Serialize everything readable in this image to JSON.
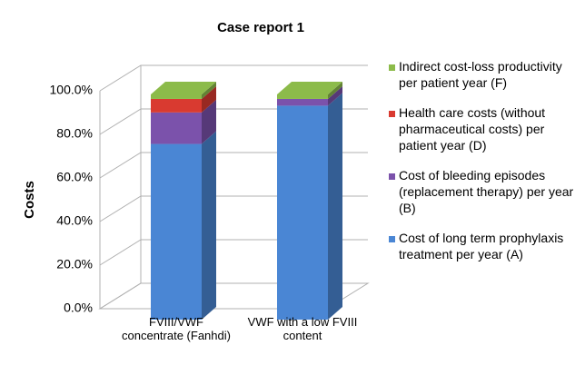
{
  "chart_data": {
    "type": "bar3d_stacked",
    "title": "Case report 1",
    "y_label": "Costs",
    "categories": [
      "FVIII/VWF concentrate (Fanhdi)",
      "VWF with a low FVIII content"
    ],
    "series": [
      {
        "name": "Cost of long term prophylaxis treatment per year (A)",
        "color": "#4a86d4",
        "values": [
          78,
          95
        ]
      },
      {
        "name": "Cost of bleeding episodes (replacement therapy) per year (B)",
        "color": "#7b52ab",
        "values": [
          14,
          3
        ]
      },
      {
        "name": "Health care costs (without pharmaceutical costs) per patient year (D)",
        "color": "#d93a30",
        "values": [
          6,
          0
        ]
      },
      {
        "name": "Indirect cost-loss productivity per patient year (F)",
        "color": "#8cbb4a",
        "values": [
          2,
          2
        ]
      }
    ],
    "ylim": [
      0,
      100
    ],
    "yticks": [
      {
        "value": 0,
        "label": "0.0%"
      },
      {
        "value": 20,
        "label": "20.0%"
      },
      {
        "value": 40,
        "label": "40.0%"
      },
      {
        "value": 60,
        "label": "60.0%"
      },
      {
        "value": 80,
        "label": "80.0%"
      },
      {
        "value": 100,
        "label": "100.0%"
      }
    ],
    "grid": true
  }
}
